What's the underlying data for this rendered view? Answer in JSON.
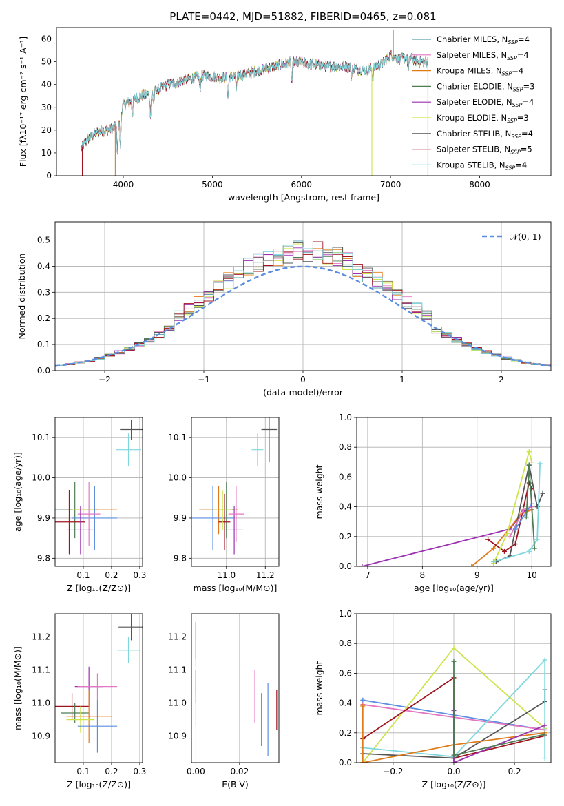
{
  "figure_title": "PLATE=0442, MJD=51882, FIBERID=0465, z=0.081",
  "colors": {
    "Chabrier MILES": "#5ba3a8",
    "Salpeter MILES": "#e377c2",
    "Kroupa MILES": "#e07b19",
    "Chabrier ELODIE": "#4e7d54",
    "Salpeter ELODIE": "#9b30b0",
    "Kroupa ELODIE": "#cde34a",
    "Chabrier STELIB": "#555555",
    "Salpeter STELIB": "#a01420",
    "Kroupa STELIB": "#7fd7de",
    "blue": "#5b8ee0"
  },
  "chart_data": [
    {
      "panel": "spectrum",
      "type": "line",
      "xlabel": "wavelength [Angstrom, rest frame]",
      "ylabel": "Flux [fλ10⁻¹⁷ erg cm⁻² s⁻¹ A⁻¹]",
      "xlim": [
        3250,
        8800
      ],
      "ylim": [
        0,
        65
      ],
      "xticks": [
        4000,
        5000,
        6000,
        7000,
        8000
      ],
      "yticks": [
        0,
        10,
        20,
        30,
        40,
        50,
        60
      ],
      "grid": false,
      "legend_position": "right",
      "legend": [
        {
          "label": "Chabrier MILES, N",
          "sub": "SSP",
          "tail": "=4",
          "color": "#5ba3a8"
        },
        {
          "label": "Salpeter MILES, N",
          "sub": "SSP",
          "tail": "=4",
          "color": "#e377c2"
        },
        {
          "label": "Kroupa MILES, N",
          "sub": "SSP",
          "tail": "=4",
          "color": "#e07b19"
        },
        {
          "label": "Chabrier ELODIE, N",
          "sub": "SSP",
          "tail": "=3",
          "color": "#4e7d54"
        },
        {
          "label": "Salpeter ELODIE, N",
          "sub": "SSP",
          "tail": "=4",
          "color": "#9b30b0"
        },
        {
          "label": "Kroupa ELODIE, N",
          "sub": "SSP",
          "tail": "=3",
          "color": "#cde34a"
        },
        {
          "label": "Chabrier STELIB, N",
          "sub": "SSP",
          "tail": "=4",
          "color": "#555555"
        },
        {
          "label": "Salpeter STELIB, N",
          "sub": "SSP",
          "tail": "=5",
          "color": "#a01420"
        },
        {
          "label": "Kroupa STELIB, N",
          "sub": "SSP",
          "tail": "=4",
          "color": "#7fd7de"
        }
      ],
      "continuum": {
        "x": [
          3530,
          3600,
          3700,
          3800,
          3900,
          3950,
          4000,
          4100,
          4200,
          4300,
          4400,
          4500,
          4700,
          4900,
          5100,
          5300,
          5500,
          5700,
          5900,
          6100,
          6300,
          6500,
          6700,
          6900,
          7000,
          7100,
          7200,
          7300,
          7420
        ],
        "y": [
          12,
          16,
          19,
          20,
          21,
          25,
          31,
          33,
          35,
          36,
          38,
          40,
          42,
          44,
          43,
          44,
          46,
          48,
          50,
          49,
          48,
          48,
          46,
          49,
          53,
          51,
          52,
          50,
          50
        ]
      },
      "features": [
        {
          "x": 3934,
          "y": 9
        },
        {
          "x": 3968,
          "y": 12
        },
        {
          "x": 4102,
          "y": 27
        },
        {
          "x": 4305,
          "y": 27
        },
        {
          "x": 4341,
          "y": 32
        },
        {
          "x": 4861,
          "y": 38
        },
        {
          "x": 5175,
          "y": 34
        },
        {
          "x": 5270,
          "y": 38
        },
        {
          "x": 5892,
          "y": 41
        },
        {
          "x": 6563,
          "y": 44
        },
        {
          "x": 6800,
          "y": 42
        },
        {
          "x": 7200,
          "y": 46
        }
      ],
      "spikes": [
        {
          "x": 5163,
          "y": 65,
          "color": "#555555"
        },
        {
          "x": 7030,
          "y": 64,
          "color": "#555555"
        }
      ],
      "dropouts": [
        {
          "x": 3540,
          "color": "#a01420"
        },
        {
          "x": 3910,
          "color": "#e07b19"
        },
        {
          "x": 6790,
          "color": "#cde34a"
        },
        {
          "x": 7420,
          "color": "#a01420"
        }
      ]
    },
    {
      "panel": "residuals",
      "type": "line",
      "xlabel": "(data-model)/error",
      "ylabel": "Normed distribution",
      "xlim": [
        -2.5,
        2.5
      ],
      "ylim": [
        0,
        0.57
      ],
      "xticks": [
        -2,
        -1,
        0,
        1,
        2
      ],
      "yticks": [
        0.0,
        0.1,
        0.2,
        0.3,
        0.4,
        0.5
      ],
      "grid": true,
      "legend_position": "top-right",
      "reference_label": "𝒩(0, 1)",
      "bin_width": 0.1
    },
    {
      "panel": "age_vs_Z",
      "type": "scatter",
      "xlabel": "Z [log₁₀(Z/Z⊙)]",
      "ylabel": "age  [log₁₀(age/yr)]",
      "xlim": [
        0.0,
        0.31
      ],
      "ylim": [
        9.78,
        10.15
      ],
      "xticks": [
        0.1,
        0.2,
        0.3
      ],
      "yticks": [
        9.8,
        9.9,
        10.0,
        10.1
      ],
      "grid": true,
      "points": [
        {
          "x": 0.27,
          "y": 10.12,
          "xerr": 0.04,
          "yerr": 0.025,
          "color": "#555555"
        },
        {
          "x": 0.26,
          "y": 10.07,
          "xerr": 0.045,
          "yerr": 0.04,
          "color": "#7fd7de"
        },
        {
          "x": 0.07,
          "y": 9.92,
          "xerr": 0.08,
          "yerr": 0.07,
          "color": "#4e7d54"
        },
        {
          "x": 0.14,
          "y": 9.92,
          "xerr": 0.08,
          "yerr": 0.06,
          "color": "#e07b19"
        },
        {
          "x": 0.1,
          "y": 9.92,
          "xerr": 0.04,
          "yerr": 0.07,
          "color": "#cde34a"
        },
        {
          "x": 0.14,
          "y": 9.9,
          "xerr": 0.08,
          "yerr": 0.08,
          "color": "#5b8ee0"
        },
        {
          "x": 0.12,
          "y": 9.91,
          "xerr": 0.04,
          "yerr": 0.08,
          "color": "#e377c2"
        },
        {
          "x": 0.05,
          "y": 9.89,
          "xerr": 0.055,
          "yerr": 0.08,
          "color": "#a01420"
        },
        {
          "x": 0.09,
          "y": 9.87,
          "xerr": 0.05,
          "yerr": 0.06,
          "color": "#9b30b0"
        }
      ]
    },
    {
      "panel": "age_vs_mass",
      "type": "scatter",
      "xlabel": "mass [log₁₀(M/M⊙)]",
      "ylabel": "",
      "xlim": [
        10.82,
        11.27
      ],
      "ylim": [
        9.78,
        10.15
      ],
      "xticks": [
        11.0,
        11.2
      ],
      "yticks": [
        9.8,
        9.9,
        10.0,
        10.1
      ],
      "grid": true,
      "points": [
        {
          "x": 11.22,
          "y": 10.12,
          "xerr": 0.04,
          "yerr": 0.08,
          "color": "#555555"
        },
        {
          "x": 11.16,
          "y": 10.07,
          "xerr": 0.03,
          "yerr": 0.04,
          "color": "#7fd7de"
        },
        {
          "x": 10.96,
          "y": 9.92,
          "xerr": 0.1,
          "yerr": 0.06,
          "color": "#e07b19"
        },
        {
          "x": 10.93,
          "y": 9.9,
          "xerr": 0.11,
          "yerr": 0.08,
          "color": "#5b8ee0"
        },
        {
          "x": 11.0,
          "y": 9.92,
          "xerr": 0.04,
          "yerr": 0.07,
          "color": "#4e7d54"
        },
        {
          "x": 10.99,
          "y": 9.89,
          "xerr": 0.03,
          "yerr": 0.07,
          "color": "#a01420"
        },
        {
          "x": 10.98,
          "y": 9.92,
          "xerr": 0.05,
          "yerr": 0.05,
          "color": "#cde34a"
        },
        {
          "x": 11.04,
          "y": 9.87,
          "xerr": 0.045,
          "yerr": 0.06,
          "color": "#9b30b0"
        },
        {
          "x": 11.05,
          "y": 9.91,
          "xerr": 0.04,
          "yerr": 0.07,
          "color": "#e377c2"
        }
      ]
    },
    {
      "panel": "weight_vs_age",
      "type": "line",
      "xlabel": "age  [log₁₀(age/yr)]",
      "ylabel": "mass weight",
      "xlim": [
        6.8,
        10.35
      ],
      "ylim": [
        0,
        1.0
      ],
      "xticks": [
        7,
        8,
        9,
        10
      ],
      "yticks": [
        0.0,
        0.2,
        0.4,
        0.6,
        0.8,
        1.0
      ],
      "grid": true,
      "series": [
        {
          "color": "#9b30b0",
          "x": [
            6.9,
            9.6,
            9.85,
            10.0
          ],
          "y": [
            0.0,
            0.25,
            0.37,
            0.38
          ]
        },
        {
          "color": "#e07b19",
          "x": [
            8.9,
            9.3,
            9.8,
            10.0
          ],
          "y": [
            0.0,
            0.12,
            0.35,
            0.38
          ]
        },
        {
          "color": "#a01420",
          "x": [
            9.2,
            9.5,
            9.7,
            9.95,
            10.0
          ],
          "y": [
            0.18,
            0.1,
            0.15,
            0.56,
            0.52
          ]
        },
        {
          "color": "#cde34a",
          "x": [
            9.3,
            9.55,
            9.95,
            10.0
          ],
          "y": [
            0.02,
            0.22,
            0.77,
            0.7
          ]
        },
        {
          "color": "#555555",
          "x": [
            9.35,
            9.6,
            9.95,
            10.1,
            10.2
          ],
          "y": [
            0.03,
            0.07,
            0.68,
            0.4,
            0.49
          ]
        },
        {
          "color": "#7fd7de",
          "x": [
            9.3,
            9.95,
            10.1,
            10.15
          ],
          "y": [
            0.03,
            0.1,
            0.18,
            0.69
          ]
        },
        {
          "color": "#e377c2",
          "x": [
            9.6,
            9.85,
            10.0
          ],
          "y": [
            0.2,
            0.38,
            0.4
          ]
        },
        {
          "color": "#5b8ee0",
          "x": [
            9.7,
            10.0
          ],
          "y": [
            0.25,
            0.42
          ]
        },
        {
          "color": "#4e7d54",
          "x": [
            9.9,
            9.95,
            10.05
          ],
          "y": [
            0.33,
            0.68,
            0.12
          ]
        }
      ]
    },
    {
      "panel": "mass_vs_Z",
      "type": "scatter",
      "xlabel": "Z [log₁₀(Z/Z⊙)]",
      "ylabel": "mass [log₁₀(M/M⊙)]",
      "xlim": [
        0.0,
        0.31
      ],
      "ylim": [
        10.82,
        11.27
      ],
      "xticks": [
        0.1,
        0.2,
        0.3
      ],
      "yticks": [
        10.9,
        11.0,
        11.1,
        11.2
      ],
      "grid": true,
      "points": [
        {
          "x": 0.27,
          "y": 11.23,
          "xerr": 0.045,
          "yerr": 0.04,
          "color": "#555555"
        },
        {
          "x": 0.26,
          "y": 11.16,
          "xerr": 0.04,
          "yerr": 0.04,
          "color": "#7fd7de"
        },
        {
          "x": 0.12,
          "y": 11.05,
          "xerr": 0.05,
          "yerr": 0.06,
          "color": "#9b30b0"
        },
        {
          "x": 0.15,
          "y": 11.05,
          "xerr": 0.07,
          "yerr": 0.04,
          "color": "#e377c2"
        },
        {
          "x": 0.06,
          "y": 10.99,
          "xerr": 0.06,
          "yerr": 0.04,
          "color": "#a01420"
        },
        {
          "x": 0.07,
          "y": 10.97,
          "xerr": 0.05,
          "yerr": 0.03,
          "color": "#4e7d54"
        },
        {
          "x": 0.12,
          "y": 10.96,
          "xerr": 0.08,
          "yerr": 0.08,
          "color": "#e07b19"
        },
        {
          "x": 0.09,
          "y": 10.95,
          "xerr": 0.05,
          "yerr": 0.04,
          "color": "#cde34a"
        },
        {
          "x": 0.15,
          "y": 10.93,
          "xerr": 0.07,
          "yerr": 0.08,
          "color": "#5b8ee0"
        }
      ]
    },
    {
      "panel": "mass_vs_EBV",
      "type": "scatter",
      "xlabel": "E(B-V)",
      "ylabel": "",
      "xlim": [
        -0.002,
        0.038
      ],
      "ylim": [
        10.82,
        11.27
      ],
      "xticks": [
        0.0,
        0.02
      ],
      "yticks": [
        10.9,
        11.0,
        11.1,
        11.2
      ],
      "grid": true,
      "points": [
        {
          "x": 0.0,
          "y": 11.19,
          "xerr": 0,
          "yerr": 0.055,
          "color": "#555555"
        },
        {
          "x": 0.0,
          "y": 11.15,
          "xerr": 0,
          "yerr": 0.04,
          "color": "#7fd7de"
        },
        {
          "x": 0.0,
          "y": 11.05,
          "xerr": 0,
          "yerr": 0.05,
          "color": "#9b30b0"
        },
        {
          "x": 0.0,
          "y": 10.98,
          "xerr": 0,
          "yerr": 0.05,
          "color": "#cde34a"
        },
        {
          "x": 0.027,
          "y": 11.02,
          "xerr": 0,
          "yerr": 0.08,
          "color": "#e377c2"
        },
        {
          "x": 0.03,
          "y": 10.95,
          "xerr": 0,
          "yerr": 0.08,
          "color": "#e07b19"
        },
        {
          "x": 0.033,
          "y": 10.95,
          "xerr": 0,
          "yerr": 0.11,
          "color": "#5b8ee0"
        },
        {
          "x": 0.037,
          "y": 10.98,
          "xerr": 0,
          "yerr": 0.06,
          "color": "#a01420"
        }
      ]
    },
    {
      "panel": "weight_vs_Z",
      "type": "line",
      "xlabel": "Z [log₁₀(Z/Z⊙)]",
      "ylabel": "mass weight",
      "xlim": [
        -0.32,
        0.32
      ],
      "ylim": [
        0,
        1.0
      ],
      "xticks": [
        -0.2,
        0.0,
        0.2
      ],
      "yticks": [
        0.0,
        0.2,
        0.4,
        0.6,
        0.8,
        1.0
      ],
      "grid": true,
      "series": [
        {
          "color": "#5b8ee0",
          "x": [
            -0.3,
            0.3
          ],
          "y": [
            0.42,
            0.22
          ]
        },
        {
          "color": "#e377c2",
          "x": [
            -0.3,
            0.3
          ],
          "y": [
            0.39,
            0.22
          ]
        },
        {
          "color": "#cde34a",
          "x": [
            -0.3,
            0.0,
            0.3
          ],
          "y": [
            0.0,
            0.77,
            0.23
          ]
        },
        {
          "color": "#a01420",
          "x": [
            -0.3,
            0.0,
            0.0,
            0.3
          ],
          "y": [
            0.16,
            0.57,
            0.03,
            0.18
          ]
        },
        {
          "color": "#555555",
          "x": [
            -0.3,
            0.0,
            0.3,
            0.3
          ],
          "y": [
            0.06,
            0.03,
            0.41,
            0.49
          ]
        },
        {
          "color": "#7fd7de",
          "x": [
            -0.3,
            0.0,
            0.3,
            0.3
          ],
          "y": [
            0.1,
            0.04,
            0.69,
            0.03
          ]
        },
        {
          "color": "#e07b19",
          "x": [
            -0.3,
            -0.3,
            0.0,
            0.3
          ],
          "y": [
            0.38,
            0.0,
            0.12,
            0.2
          ]
        },
        {
          "color": "#9b30b0",
          "x": [
            0.0,
            0.0,
            0.3
          ],
          "y": [
            0.35,
            0.0,
            0.25
          ]
        },
        {
          "color": "#4e7d54",
          "x": [
            0.0,
            0.0,
            0.3
          ],
          "y": [
            0.68,
            0.05,
            0.19
          ]
        }
      ]
    }
  ]
}
